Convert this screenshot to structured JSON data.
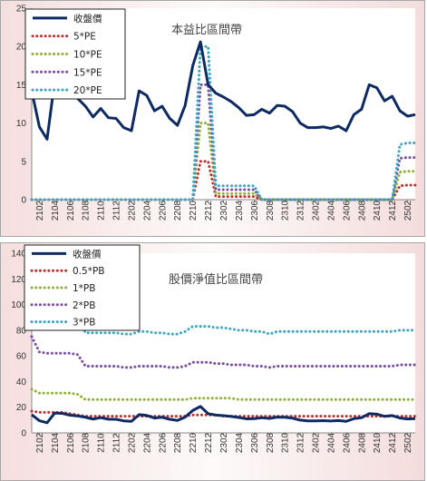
{
  "chart_data": [
    {
      "type": "line",
      "title": "本益比區間帶",
      "ylim": [
        0,
        25
      ],
      "yticks": [
        0,
        5,
        10,
        15,
        20,
        25
      ],
      "x": [
        "2101",
        "2102",
        "2103",
        "2104",
        "2105",
        "2106",
        "2107",
        "2108",
        "2109",
        "2110",
        "2111",
        "2112",
        "2201",
        "2202",
        "2203",
        "2204",
        "2205",
        "2206",
        "2207",
        "2208",
        "2209",
        "2210",
        "2211",
        "2212",
        "2301",
        "2302",
        "2303",
        "2304",
        "2305",
        "2306",
        "2307",
        "2308",
        "2309",
        "2310",
        "2311",
        "2312",
        "2401",
        "2402",
        "2403",
        "2404",
        "2405",
        "2406",
        "2407",
        "2408",
        "2409",
        "2410",
        "2411",
        "2412",
        "2501",
        "2502",
        "2503"
      ],
      "xtick_labels": [
        "2102",
        "2104",
        "2106",
        "2108",
        "2110",
        "2112",
        "2202",
        "2204",
        "2206",
        "2208",
        "2210",
        "2212",
        "2302",
        "2304",
        "2306",
        "2308",
        "2310",
        "2312",
        "2402",
        "2404",
        "2406",
        "2408",
        "2410",
        "2412",
        "2502"
      ],
      "legend_position": "top-left",
      "series": [
        {
          "name": "收盤價",
          "color": "#0d2a63",
          "style": "solid",
          "values": [
            14.2,
            9.5,
            7.9,
            15.5,
            15.2,
            13.8,
            13.2,
            12.2,
            10.8,
            11.9,
            10.7,
            10.6,
            9.4,
            9.0,
            14.2,
            13.6,
            11.6,
            12.2,
            10.6,
            9.7,
            12.3,
            17.5,
            20.6,
            15.0,
            13.9,
            13.4,
            12.8,
            12.0,
            11.0,
            11.1,
            11.8,
            11.3,
            12.3,
            12.2,
            11.5,
            10.0,
            9.4,
            9.4,
            9.5,
            9.3,
            9.6,
            9.0,
            11.1,
            11.8,
            15.0,
            14.6,
            12.9,
            13.5,
            11.6,
            10.9,
            11.1
          ]
        },
        {
          "name": "5*PE",
          "color": "#c0302e",
          "style": "dotted",
          "values": [
            0,
            0,
            0,
            0,
            0,
            0,
            0,
            0,
            0,
            0,
            0,
            0,
            0,
            0,
            0,
            0,
            0,
            0,
            0,
            0,
            0,
            0,
            5,
            5,
            0.4,
            0.4,
            0.4,
            0.4,
            0.4,
            0.4,
            0,
            0,
            0,
            0,
            0,
            0,
            0,
            0,
            0,
            0,
            0,
            0,
            0,
            0,
            0,
            0,
            0,
            0,
            1.8,
            1.9,
            1.9
          ]
        },
        {
          "name": "10*PE",
          "color": "#8fb33a",
          "style": "dotted",
          "values": [
            0,
            0,
            0,
            0,
            0,
            0,
            0,
            0,
            0,
            0,
            0,
            0,
            0,
            0,
            0,
            0,
            0,
            0,
            0,
            0,
            0,
            0,
            10,
            10,
            0.8,
            0.8,
            0.8,
            0.8,
            0.8,
            0.8,
            0,
            0,
            0,
            0,
            0,
            0,
            0,
            0,
            0,
            0,
            0,
            0,
            0,
            0,
            0,
            0,
            0,
            0,
            3.6,
            3.7,
            3.7
          ]
        },
        {
          "name": "15*PE",
          "color": "#7a4fa3",
          "style": "dotted",
          "values": [
            0,
            0,
            0,
            0,
            0,
            0,
            0,
            0,
            0,
            0,
            0,
            0,
            0,
            0,
            0,
            0,
            0,
            0,
            0,
            0,
            0,
            0,
            15,
            15,
            1.3,
            1.3,
            1.3,
            1.3,
            1.3,
            1.3,
            0,
            0,
            0,
            0,
            0,
            0,
            0,
            0,
            0,
            0,
            0,
            0,
            0,
            0,
            0,
            0,
            0,
            0,
            5.4,
            5.5,
            5.5
          ]
        },
        {
          "name": "20*PE",
          "color": "#3aa7c4",
          "style": "dotted",
          "values": [
            0,
            0,
            0,
            0,
            0,
            0,
            0,
            0,
            0,
            0,
            0,
            0,
            0,
            0,
            0,
            0,
            0,
            0,
            0,
            0,
            0,
            0,
            20,
            20,
            1.8,
            1.8,
            1.8,
            1.8,
            1.8,
            1.8,
            0,
            0,
            0,
            0,
            0,
            0,
            0,
            0,
            0,
            0,
            0,
            0,
            0,
            0,
            0,
            0,
            0,
            0,
            7.2,
            7.4,
            7.4
          ]
        }
      ]
    },
    {
      "type": "line",
      "title": "股價淨值比區間帶",
      "ylim": [
        0,
        140
      ],
      "yticks": [
        0,
        20,
        40,
        60,
        80,
        100,
        120,
        140
      ],
      "x": [
        "2101",
        "2102",
        "2103",
        "2104",
        "2105",
        "2106",
        "2107",
        "2108",
        "2109",
        "2110",
        "2111",
        "2112",
        "2201",
        "2202",
        "2203",
        "2204",
        "2205",
        "2206",
        "2207",
        "2208",
        "2209",
        "2210",
        "2211",
        "2212",
        "2301",
        "2302",
        "2303",
        "2304",
        "2305",
        "2306",
        "2307",
        "2308",
        "2309",
        "2310",
        "2311",
        "2312",
        "2401",
        "2402",
        "2403",
        "2404",
        "2405",
        "2406",
        "2407",
        "2408",
        "2409",
        "2410",
        "2411",
        "2412",
        "2501",
        "2502",
        "2503"
      ],
      "xtick_labels": [
        "2102",
        "2104",
        "2106",
        "2108",
        "2110",
        "2112",
        "2202",
        "2204",
        "2206",
        "2208",
        "2210",
        "2212",
        "2302",
        "2304",
        "2306",
        "2308",
        "2310",
        "2312",
        "2402",
        "2404",
        "2406",
        "2408",
        "2410",
        "2412",
        "2502"
      ],
      "legend_position": "top-left",
      "series": [
        {
          "name": "收盤價",
          "color": "#0d2a63",
          "style": "solid",
          "values": [
            14.2,
            9.5,
            7.9,
            15.5,
            15.2,
            13.8,
            13.2,
            12.2,
            10.8,
            11.9,
            10.7,
            10.6,
            9.4,
            9.0,
            14.2,
            13.6,
            11.6,
            12.2,
            10.6,
            9.7,
            12.3,
            17.5,
            20.6,
            15.0,
            13.9,
            13.4,
            12.8,
            12.0,
            11.0,
            11.1,
            11.8,
            11.3,
            12.3,
            12.2,
            11.5,
            10.0,
            9.4,
            9.4,
            9.5,
            9.3,
            9.6,
            9.0,
            11.1,
            11.8,
            15.0,
            14.6,
            12.9,
            13.5,
            11.6,
            10.9,
            11.1
          ]
        },
        {
          "name": "0.5*PB",
          "color": "#c0302e",
          "style": "dotted",
          "values": [
            17,
            16,
            16,
            16,
            16,
            15,
            14,
            13,
            13,
            13,
            13,
            13,
            13,
            13,
            13,
            13,
            13,
            13,
            13,
            13,
            13,
            14,
            14,
            14,
            14,
            13,
            13,
            13,
            13,
            13,
            13,
            13,
            13,
            13,
            13,
            13,
            13,
            13,
            13,
            13,
            13,
            13,
            13,
            13,
            13,
            13,
            13,
            13,
            13,
            13,
            13
          ]
        },
        {
          "name": "1*PB",
          "color": "#8fb33a",
          "style": "dotted",
          "values": [
            34,
            31,
            31,
            31,
            31,
            31,
            30,
            26,
            26,
            26,
            26,
            26,
            26,
            26,
            26,
            26,
            26,
            26,
            26,
            26,
            26,
            27,
            27,
            27,
            27,
            27,
            27,
            26,
            26,
            26,
            26,
            26,
            26,
            26,
            26,
            26,
            26,
            26,
            26,
            26,
            26,
            26,
            26,
            26,
            26,
            26,
            26,
            26,
            26,
            26,
            26
          ]
        },
        {
          "name": "2*PB",
          "color": "#7a4fa3",
          "style": "dotted",
          "values": [
            75,
            63,
            62,
            62,
            62,
            62,
            61,
            52,
            52,
            52,
            52,
            52,
            51,
            51,
            52,
            52,
            52,
            52,
            51,
            51,
            52,
            55,
            55,
            55,
            54,
            54,
            53,
            53,
            53,
            52,
            52,
            51,
            52,
            52,
            52,
            52,
            52,
            52,
            52,
            52,
            52,
            52,
            52,
            52,
            52,
            52,
            52,
            52,
            53,
            53,
            53
          ]
        },
        {
          "name": "3*PB",
          "color": "#3aa7c4",
          "style": "dotted",
          "values": [
            113,
            94,
            93,
            93,
            93,
            92,
            91,
            78,
            78,
            78,
            78,
            78,
            77,
            77,
            79,
            79,
            78,
            78,
            77,
            77,
            79,
            83,
            83,
            83,
            82,
            82,
            81,
            80,
            80,
            79,
            79,
            77,
            79,
            79,
            79,
            79,
            79,
            79,
            79,
            79,
            79,
            79,
            79,
            79,
            79,
            79,
            79,
            79,
            80,
            80,
            80
          ]
        }
      ]
    }
  ]
}
